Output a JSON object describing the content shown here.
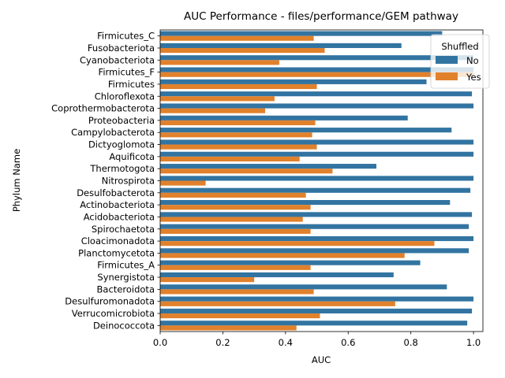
{
  "chart_data": {
    "type": "bar",
    "orientation": "horizontal",
    "title": "AUC Performance - files/performance/GEM pathway",
    "xlabel": "AUC",
    "ylabel": "Phylum Name",
    "xlim": [
      0,
      1.03
    ],
    "xticks": [
      "0.0",
      "0.2",
      "0.4",
      "0.6",
      "0.8",
      "1.0"
    ],
    "grid": false,
    "legend": {
      "title": "Shuffled",
      "placement": "top-right"
    },
    "categories": [
      "Firmicutes_C",
      "Fusobacteriota",
      "Cyanobacteriota",
      "Firmicutes_F",
      "Firmicutes",
      "Chloroflexota",
      "Coprothermobacterota",
      "Proteobacteria",
      "Campylobacterota",
      "Dictyoglomota",
      "Aquificota",
      "Thermotogota",
      "Nitrospirota",
      "Desulfobacterota",
      "Actinobacteriota",
      "Acidobacteriota",
      "Spirochaetota",
      "Cloacimonadota",
      "Planctomycetota",
      "Firmicutes_A",
      "Synergistota",
      "Bacteroidota",
      "Desulfuromonadota",
      "Verrucomicrobiota",
      "Deinococcota"
    ],
    "series": [
      {
        "name": "No",
        "color": "#3274a1",
        "values": [
          0.9,
          0.77,
          1.0,
          1.0,
          0.85,
          0.995,
          1.0,
          0.79,
          0.93,
          1.0,
          1.0,
          0.69,
          1.0,
          0.99,
          0.925,
          0.995,
          0.985,
          1.0,
          0.985,
          0.83,
          0.745,
          0.915,
          1.0,
          0.995,
          0.98
        ]
      },
      {
        "name": "Yes",
        "color": "#e1812c",
        "values": [
          0.49,
          0.525,
          0.38,
          1.0,
          0.5,
          0.365,
          0.335,
          0.495,
          0.485,
          0.5,
          0.445,
          0.55,
          0.145,
          0.465,
          0.48,
          0.455,
          0.48,
          0.875,
          0.78,
          0.48,
          0.3,
          0.49,
          0.75,
          0.51,
          0.435
        ]
      }
    ]
  }
}
